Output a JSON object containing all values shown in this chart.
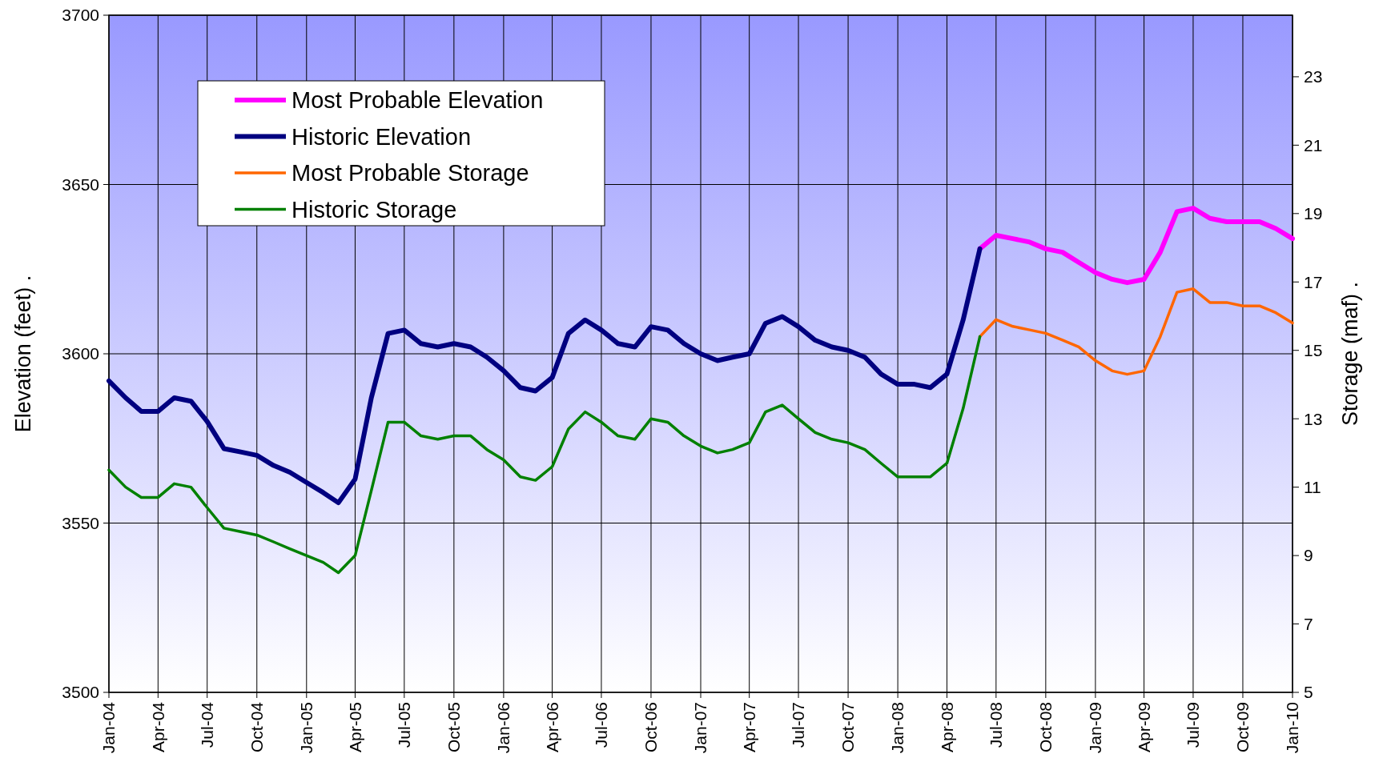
{
  "chart_data": {
    "type": "line",
    "ylabel": "Elevation (feet) .",
    "y2label": "Storage (maf) .",
    "x": [
      "2004-01",
      "2004-02",
      "2004-03",
      "2004-04",
      "2004-05",
      "2004-06",
      "2004-07",
      "2004-08",
      "2004-09",
      "2004-10",
      "2004-11",
      "2004-12",
      "2005-01",
      "2005-02",
      "2005-03",
      "2005-04",
      "2005-05",
      "2005-06",
      "2005-07",
      "2005-08",
      "2005-09",
      "2005-10",
      "2005-11",
      "2005-12",
      "2006-01",
      "2006-02",
      "2006-03",
      "2006-04",
      "2006-05",
      "2006-06",
      "2006-07",
      "2006-08",
      "2006-09",
      "2006-10",
      "2006-11",
      "2006-12",
      "2007-01",
      "2007-02",
      "2007-03",
      "2007-04",
      "2007-05",
      "2007-06",
      "2007-07",
      "2007-08",
      "2007-09",
      "2007-10",
      "2007-11",
      "2007-12",
      "2008-01",
      "2008-02",
      "2008-03",
      "2008-04",
      "2008-05",
      "2008-06",
      "2008-07",
      "2008-08",
      "2008-09",
      "2008-10",
      "2008-11",
      "2008-12",
      "2009-01",
      "2009-02",
      "2009-03",
      "2009-04",
      "2009-05",
      "2009-06",
      "2009-07",
      "2009-08",
      "2009-09",
      "2009-10",
      "2009-11",
      "2009-12",
      "2010-01"
    ],
    "series": [
      {
        "name": "Most Probable Elevation",
        "color": "#ff00ff",
        "values": [
          null,
          null,
          null,
          null,
          null,
          null,
          null,
          null,
          null,
          null,
          null,
          null,
          null,
          null,
          null,
          null,
          null,
          null,
          null,
          null,
          null,
          null,
          null,
          null,
          null,
          null,
          null,
          null,
          null,
          null,
          null,
          null,
          null,
          null,
          null,
          null,
          null,
          null,
          null,
          null,
          null,
          null,
          null,
          null,
          null,
          null,
          null,
          null,
          null,
          null,
          null,
          null,
          null,
          3631,
          3635,
          3634,
          3633,
          3631,
          3630,
          3627,
          3624,
          3622,
          3621,
          3622,
          3630,
          3642,
          3643,
          3640,
          3639,
          3639,
          3639,
          3637,
          3634
        ]
      },
      {
        "name": "Historic Elevation",
        "color": "#000080",
        "values": [
          3592,
          3587,
          3583,
          3583,
          3587,
          3586,
          3580,
          3572,
          3571,
          3570,
          3567,
          3565,
          3562,
          3559,
          3556,
          3563,
          3587,
          3606,
          3607,
          3603,
          3602,
          3603,
          3602,
          3599,
          3595,
          3590,
          3589,
          3593,
          3606,
          3610,
          3607,
          3603,
          3602,
          3608,
          3607,
          3603,
          3600,
          3598,
          3599,
          3600,
          3609,
          3611,
          3608,
          3604,
          3602,
          3601,
          3599,
          3594,
          3591,
          3591,
          3590,
          3594,
          3610,
          3631,
          null,
          null,
          null,
          null,
          null,
          null,
          null,
          null,
          null,
          null,
          null,
          null,
          null,
          null,
          null,
          null,
          null,
          null,
          null
        ]
      },
      {
        "name": "Most Probable Storage",
        "color": "#ff6600",
        "axis": "y2",
        "values": [
          null,
          null,
          null,
          null,
          null,
          null,
          null,
          null,
          null,
          null,
          null,
          null,
          null,
          null,
          null,
          null,
          null,
          null,
          null,
          null,
          null,
          null,
          null,
          null,
          null,
          null,
          null,
          null,
          null,
          null,
          null,
          null,
          null,
          null,
          null,
          null,
          null,
          null,
          null,
          null,
          null,
          null,
          null,
          null,
          null,
          null,
          null,
          null,
          null,
          null,
          null,
          null,
          null,
          15.4,
          15.9,
          15.7,
          15.6,
          15.5,
          15.3,
          15.1,
          14.7,
          14.4,
          14.3,
          14.4,
          15.4,
          16.7,
          16.8,
          16.4,
          16.4,
          16.3,
          16.3,
          16.1,
          15.8
        ]
      },
      {
        "name": "Historic Storage",
        "color": "#008000",
        "axis": "y2",
        "values": [
          11.5,
          11.0,
          10.7,
          10.7,
          11.1,
          11.0,
          10.4,
          9.8,
          9.7,
          9.6,
          9.4,
          9.2,
          9.0,
          8.8,
          8.5,
          9.0,
          10.9,
          12.9,
          12.9,
          12.5,
          12.4,
          12.5,
          12.5,
          12.1,
          11.8,
          11.3,
          11.2,
          11.6,
          12.7,
          13.2,
          12.9,
          12.5,
          12.4,
          13.0,
          12.9,
          12.5,
          12.2,
          12.0,
          12.1,
          12.3,
          13.2,
          13.4,
          13.0,
          12.6,
          12.4,
          12.3,
          12.1,
          11.7,
          11.3,
          11.3,
          11.3,
          11.7,
          13.3,
          15.4,
          null,
          null,
          null,
          null,
          null,
          null,
          null,
          null,
          null,
          null,
          null,
          null,
          null,
          null,
          null,
          null,
          null,
          null,
          null
        ]
      }
    ],
    "xlim": [
      "2004-01",
      "2010-01"
    ],
    "xticks": [
      {
        "value": "2004-01",
        "label": "Jan-04"
      },
      {
        "value": "2004-04",
        "label": "Apr-04"
      },
      {
        "value": "2004-07",
        "label": "Jul-04"
      },
      {
        "value": "2004-10",
        "label": "Oct-04"
      },
      {
        "value": "2005-01",
        "label": "Jan-05"
      },
      {
        "value": "2005-04",
        "label": "Apr-05"
      },
      {
        "value": "2005-07",
        "label": "Jul-05"
      },
      {
        "value": "2005-10",
        "label": "Oct-05"
      },
      {
        "value": "2006-01",
        "label": "Jan-06"
      },
      {
        "value": "2006-04",
        "label": "Apr-06"
      },
      {
        "value": "2006-07",
        "label": "Jul-06"
      },
      {
        "value": "2006-10",
        "label": "Oct-06"
      },
      {
        "value": "2007-01",
        "label": "Jan-07"
      },
      {
        "value": "2007-04",
        "label": "Apr-07"
      },
      {
        "value": "2007-07",
        "label": "Jul-07"
      },
      {
        "value": "2007-10",
        "label": "Oct-07"
      },
      {
        "value": "2008-01",
        "label": "Jan-08"
      },
      {
        "value": "2008-04",
        "label": "Apr-08"
      },
      {
        "value": "2008-07",
        "label": "Jul-08"
      },
      {
        "value": "2008-10",
        "label": "Oct-08"
      },
      {
        "value": "2009-01",
        "label": "Jan-09"
      },
      {
        "value": "2009-04",
        "label": "Apr-09"
      },
      {
        "value": "2009-07",
        "label": "Jul-09"
      },
      {
        "value": "2009-10",
        "label": "Oct-09"
      },
      {
        "value": "2010-01",
        "label": "Jan-10"
      }
    ],
    "ylim": [
      3500,
      3700
    ],
    "yticks": [
      3500,
      3550,
      3600,
      3650,
      3700
    ],
    "y2lim": [
      5,
      24.8
    ],
    "y2ticks": [
      5,
      7,
      9,
      11,
      13,
      15,
      17,
      19,
      21,
      23
    ],
    "grid": true,
    "legend": "top left",
    "line_style": "solid",
    "marker": "none"
  }
}
